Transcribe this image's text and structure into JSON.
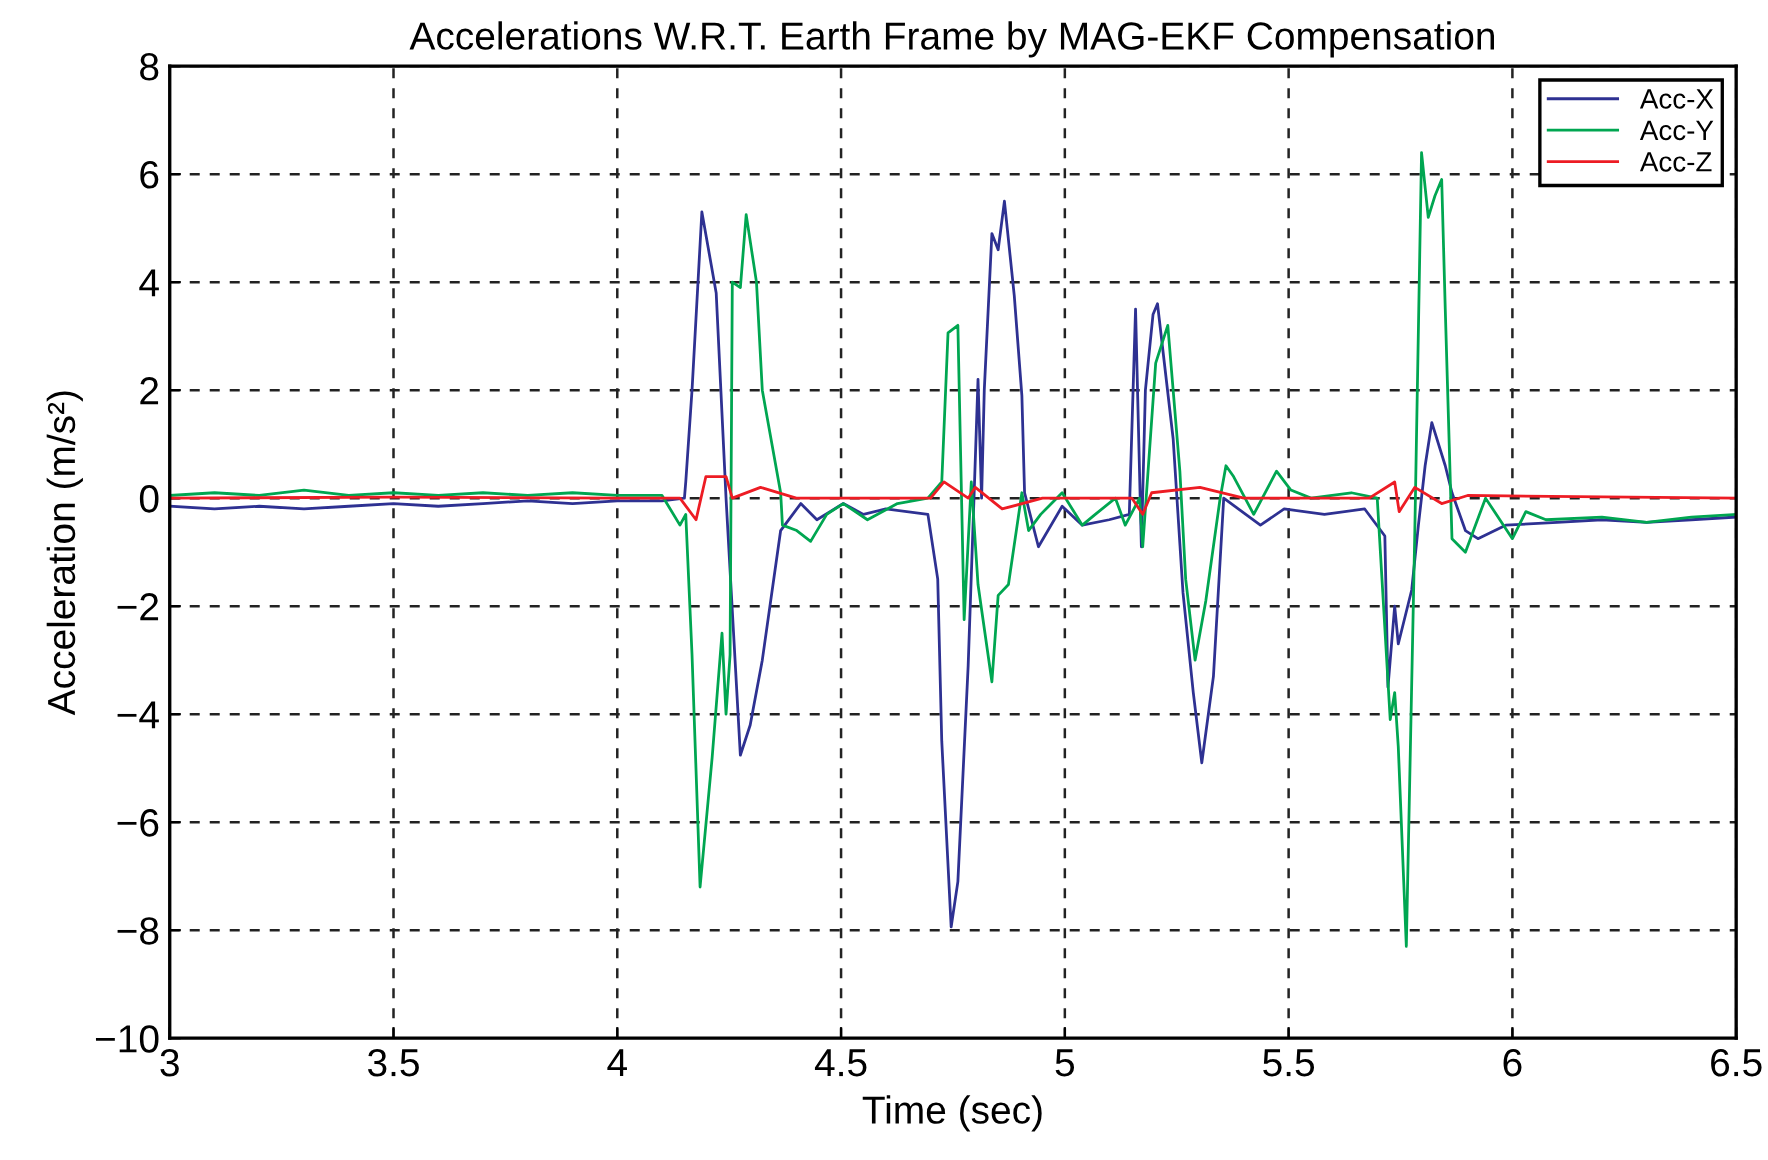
{
  "chart_data": {
    "type": "line",
    "title": "Accelerations W.R.T. Earth Frame by MAG-EKF Compensation",
    "xlabel": "Time (sec)",
    "ylabel": "Acceleration (m/s²)",
    "xlim": [
      3,
      6.5
    ],
    "xticks": [
      3,
      3.5,
      4,
      4.5,
      5,
      5.5,
      6,
      6.5
    ],
    "ylim": [
      -10,
      8
    ],
    "yticks": [
      {
        "value": -10,
        "label": "−10"
      },
      {
        "value": -8,
        "label": "−8"
      },
      {
        "value": -6,
        "label": "−6"
      },
      {
        "value": -4,
        "label": "−4"
      },
      {
        "value": -2,
        "label": "−2"
      },
      0,
      2,
      4,
      6,
      8
    ],
    "grid": true,
    "legend": "top right",
    "line_style": "solid",
    "marker": "none",
    "series": [
      {
        "name": "Acc-X",
        "color": "#2e3192",
        "x": [
          3.0,
          3.1,
          3.2,
          3.3,
          3.4,
          3.5,
          3.6,
          3.7,
          3.8,
          3.9,
          4.0,
          4.1,
          4.15,
          4.153,
          4.167,
          4.189,
          4.221,
          4.243,
          4.275,
          4.297,
          4.324,
          4.365,
          4.41,
          4.446,
          4.505,
          4.55,
          4.6,
          4.694,
          4.716,
          4.725,
          4.746,
          4.761,
          4.784,
          4.797,
          4.806,
          4.814,
          4.82,
          4.837,
          4.851,
          4.865,
          4.887,
          4.904,
          4.91,
          4.941,
          4.994,
          5.039,
          5.099,
          5.144,
          5.158,
          5.171,
          5.18,
          5.197,
          5.207,
          5.242,
          5.264,
          5.287,
          5.306,
          5.332,
          5.355,
          5.437,
          5.49,
          5.58,
          5.67,
          5.715,
          5.722,
          5.737,
          5.745,
          5.775,
          5.79,
          5.805,
          5.82,
          5.85,
          5.865,
          5.895,
          5.923,
          5.985,
          6.1,
          6.2,
          6.3,
          6.4,
          6.5
        ],
        "values": [
          -0.15,
          -0.2,
          -0.15,
          -0.2,
          -0.15,
          -0.1,
          -0.15,
          -0.1,
          -0.05,
          -0.1,
          -0.05,
          -0.05,
          0.0,
          0.3,
          2.0,
          5.3,
          3.8,
          0,
          -4.76,
          -4.2,
          -3.0,
          -0.6,
          -0.1,
          -0.4,
          -0.1,
          -0.3,
          -0.2,
          -0.3,
          -1.5,
          -4.5,
          -7.94,
          -7.1,
          -3.1,
          0,
          2.2,
          0,
          2.0,
          4.9,
          4.6,
          5.5,
          3.75,
          1.9,
          0.1,
          -0.9,
          -0.15,
          -0.5,
          -0.4,
          -0.3,
          3.5,
          -0.9,
          2.0,
          3.4,
          3.6,
          1.1,
          -1.75,
          -3.6,
          -4.9,
          -3.3,
          0,
          -0.5,
          -0.2,
          -0.3,
          -0.2,
          -0.7,
          -3.5,
          -2.0,
          -2.7,
          -1.7,
          -0.5,
          0.6,
          1.4,
          0.6,
          0.1,
          -0.6,
          -0.75,
          -0.5,
          -0.45,
          -0.4,
          -0.45,
          -0.4,
          -0.35
        ]
      },
      {
        "name": "Acc-Y",
        "color": "#00a651",
        "x": [
          3.0,
          3.1,
          3.2,
          3.3,
          3.4,
          3.5,
          3.6,
          3.7,
          3.8,
          3.9,
          4.0,
          4.1,
          4.14,
          4.153,
          4.167,
          4.185,
          4.212,
          4.234,
          4.243,
          4.252,
          4.257,
          4.275,
          4.288,
          4.311,
          4.324,
          4.365,
          4.369,
          4.401,
          4.432,
          4.468,
          4.505,
          4.559,
          4.626,
          4.694,
          4.725,
          4.739,
          4.761,
          4.775,
          4.791,
          4.806,
          4.837,
          4.851,
          4.874,
          4.904,
          4.919,
          4.946,
          4.994,
          5.039,
          5.068,
          5.113,
          5.135,
          5.167,
          5.174,
          5.203,
          5.23,
          5.257,
          5.27,
          5.291,
          5.315,
          5.347,
          5.36,
          5.377,
          5.422,
          5.473,
          5.505,
          5.55,
          5.64,
          5.698,
          5.727,
          5.737,
          5.745,
          5.763,
          5.782,
          5.797,
          5.812,
          5.827,
          5.842,
          5.85,
          5.865,
          5.895,
          5.94,
          6.0,
          6.03,
          6.075,
          6.2,
          6.3,
          6.4,
          6.5
        ],
        "values": [
          0.05,
          0.1,
          0.05,
          0.15,
          0.05,
          0.1,
          0.05,
          0.1,
          0.05,
          0.1,
          0.05,
          0.05,
          -0.5,
          -0.3,
          -2.9,
          -7.2,
          -4.8,
          -2.5,
          -4.0,
          -2.9,
          4.0,
          3.9,
          5.25,
          4.0,
          2.0,
          0.1,
          -0.5,
          -0.6,
          -0.8,
          -0.3,
          -0.1,
          -0.4,
          -0.1,
          0,
          0.3,
          3.06,
          3.2,
          -2.25,
          0.3,
          -1.6,
          -3.4,
          -1.8,
          -1.6,
          0.1,
          -0.6,
          -0.3,
          0.1,
          -0.5,
          -0.3,
          0,
          -0.5,
          0,
          -0.9,
          2.5,
          3.2,
          0.5,
          -1.5,
          -3.0,
          -1.9,
          0,
          0.6,
          0.4,
          -0.3,
          0.5,
          0.15,
          0,
          0.1,
          0,
          -4.1,
          -3.6,
          -4.6,
          -8.3,
          -0.6,
          6.4,
          5.2,
          5.6,
          5.9,
          3.5,
          -0.75,
          -1.0,
          0,
          -0.75,
          -0.25,
          -0.4,
          -0.35,
          -0.45,
          -0.35,
          -0.3
        ]
      },
      {
        "name": "Acc-Z",
        "color": "#ed1c24",
        "x": [
          3.0,
          3.5,
          4.0,
          4.14,
          4.176,
          4.198,
          4.243,
          4.257,
          4.32,
          4.4,
          4.7,
          4.73,
          4.784,
          4.8,
          4.86,
          4.95,
          5.15,
          5.174,
          5.194,
          5.302,
          5.4,
          5.68,
          5.737,
          5.747,
          5.782,
          5.842,
          5.9,
          6.5
        ],
        "values": [
          0,
          0.02,
          0,
          0,
          -0.4,
          0.4,
          0.4,
          0,
          0.2,
          0,
          0,
          0.3,
          0,
          0.2,
          -0.2,
          0,
          0,
          -0.3,
          0.1,
          0.2,
          0,
          0,
          0.3,
          -0.25,
          0.2,
          -0.1,
          0.05,
          0
        ]
      }
    ]
  }
}
